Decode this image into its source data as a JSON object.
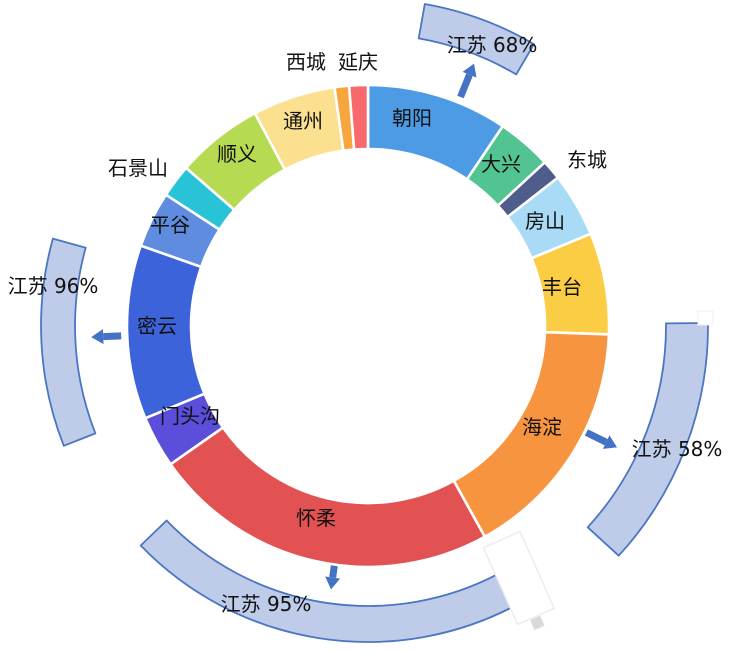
{
  "chart_data": {
    "type": "pie",
    "variant": "donut-ring",
    "title": "",
    "legend_position": "none",
    "grid": false,
    "units": "percent (segment shares estimated from arc angles; no numeric labels shown on ring)",
    "segments": [
      {
        "id": "chaoyang",
        "label": "朝阳",
        "angle_start": 0,
        "angle_end": 34,
        "share_pct": 9.4,
        "color": "#4E9BE5"
      },
      {
        "id": "daxing",
        "label": "大兴",
        "angle_start": 34,
        "angle_end": 47.2,
        "share_pct": 3.7,
        "color": "#52C492"
      },
      {
        "id": "dongcheng",
        "label": "东城",
        "angle_start": 47.2,
        "angle_end": 52,
        "share_pct": 1.3,
        "color": "#4E5D8C"
      },
      {
        "id": "fangshan",
        "label": "房山",
        "angle_start": 52,
        "angle_end": 67.5,
        "share_pct": 4.3,
        "color": "#A9DBF6"
      },
      {
        "id": "fengtai",
        "label": "丰台",
        "angle_start": 67.5,
        "angle_end": 92,
        "share_pct": 6.8,
        "color": "#FACD44"
      },
      {
        "id": "haidian",
        "label": "海淀",
        "angle_start": 92,
        "angle_end": 151,
        "share_pct": 16.4,
        "color": "#F7943F"
      },
      {
        "id": "huairou",
        "label": "怀柔",
        "angle_start": 151,
        "angle_end": 235,
        "share_pct": 23.3,
        "color": "#E25252"
      },
      {
        "id": "mentougou",
        "label": "门头沟",
        "angle_start": 235,
        "angle_end": 247.5,
        "share_pct": 3.5,
        "color": "#5B4EDB"
      },
      {
        "id": "miyun",
        "label": "密云",
        "angle_start": 247.5,
        "angle_end": 289.5,
        "share_pct": 11.7,
        "color": "#3C63D9"
      },
      {
        "id": "pinggu",
        "label": "平谷",
        "angle_start": 289.5,
        "angle_end": 303,
        "share_pct": 3.8,
        "color": "#5F8CDF"
      },
      {
        "id": "shijingshan",
        "label": "石景山",
        "angle_start": 303,
        "angle_end": 311,
        "share_pct": 2.2,
        "color": "#29C3D8"
      },
      {
        "id": "shunyi",
        "label": "顺义",
        "angle_start": 311,
        "angle_end": 332,
        "share_pct": 5.8,
        "color": "#B6DA51"
      },
      {
        "id": "tongzhou",
        "label": "通州",
        "angle_start": 332,
        "angle_end": 352,
        "share_pct": 5.6,
        "color": "#FBE18F"
      },
      {
        "id": "xicheng",
        "label": "西城",
        "angle_start": 352,
        "angle_end": 355.5,
        "share_pct": 1.0,
        "color": "#F7A63F"
      },
      {
        "id": "yanqing",
        "label": "延庆",
        "angle_start": 355.5,
        "angle_end": 360,
        "share_pct": 1.2,
        "color": "#F7696B"
      }
    ],
    "callouts": [
      {
        "id": "jiangsu-68",
        "label": "江苏 68%",
        "value_pct": 68,
        "region": "朝阳",
        "angle_start": 10,
        "angle_end": 30.5
      },
      {
        "id": "jiangsu-58",
        "label": "江苏 58%",
        "value_pct": 58,
        "region": "海淀",
        "angle_start": 89.5,
        "angle_end": 132.5
      },
      {
        "id": "jiangsu-95",
        "label": "江苏 95%",
        "value_pct": 95,
        "region": "怀柔",
        "angle_start": 152,
        "angle_end": 226
      },
      {
        "id": "jiangsu-96",
        "label": "江苏 96%",
        "value_pct": 96,
        "region": "密云",
        "angle_start": 248.5,
        "angle_end": 285.5
      }
    ],
    "colors": {
      "callout_fill": "#BECBE9",
      "callout_stroke": "#4B76C2",
      "arrow": "#4472C4",
      "separator": "#FFFFFF",
      "label_text": "#111111",
      "background": "#FFFFFF"
    }
  }
}
